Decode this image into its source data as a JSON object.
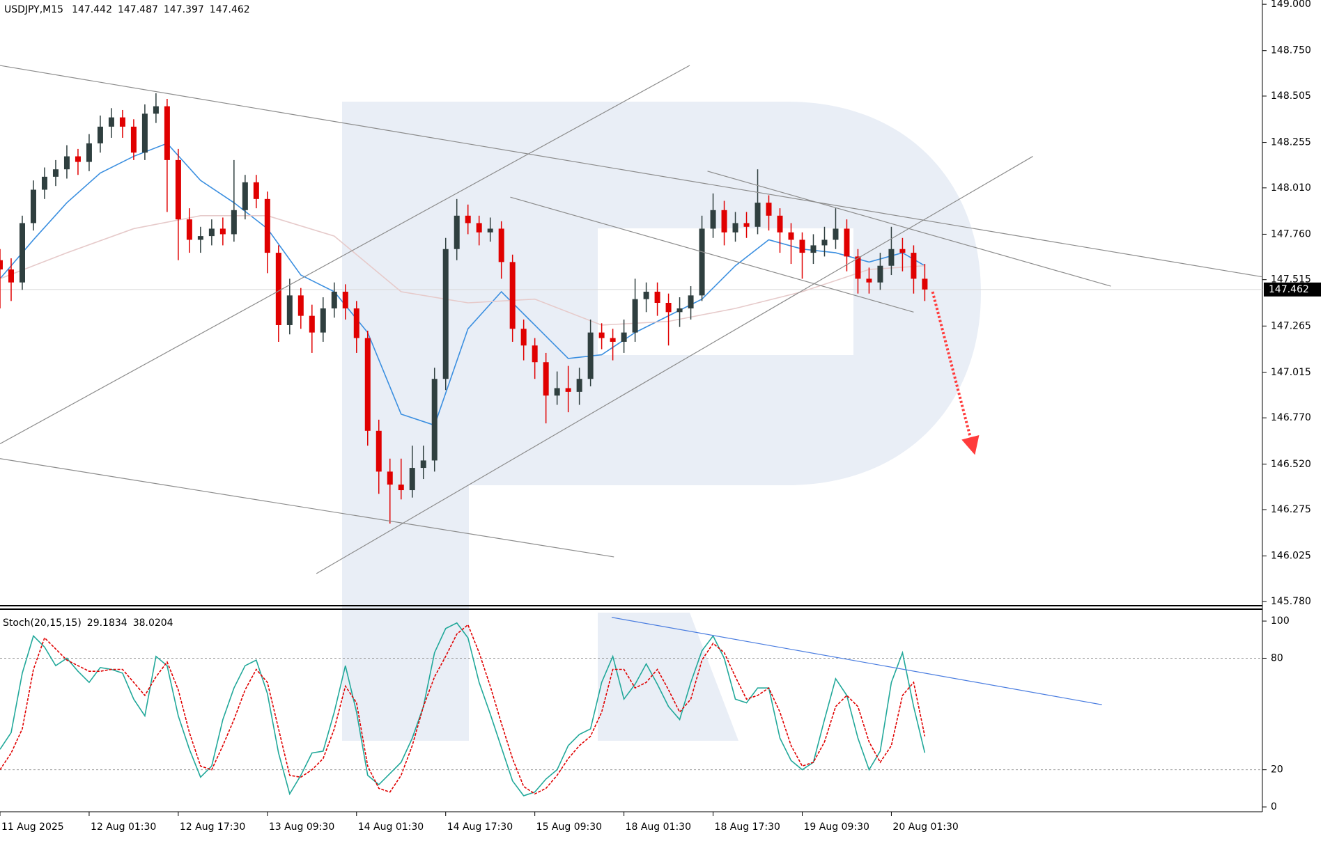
{
  "chart_data": [
    {
      "type": "candlestick",
      "title": "USDJPY,M15",
      "header_values": [
        147.442,
        147.487,
        147.397,
        147.462
      ],
      "up_color": "#2f3f3f",
      "down_color": "#e00000",
      "xlim": [
        0,
        113.3
      ],
      "ylim": [
        145.757,
        149.023
      ],
      "yticks": [
        {
          "value": 149.0,
          "label": "149.000"
        },
        {
          "value": 148.75,
          "label": "148.750"
        },
        {
          "value": 148.505,
          "label": "148.505"
        },
        {
          "value": 148.255,
          "label": "148.255"
        },
        {
          "value": 148.01,
          "label": "148.010"
        },
        {
          "value": 147.76,
          "label": "147.760"
        },
        {
          "value": 147.515,
          "label": "147.515"
        },
        {
          "value": 147.265,
          "label": "147.265"
        },
        {
          "value": 147.015,
          "label": "147.015"
        },
        {
          "value": 146.77,
          "label": "146.770"
        },
        {
          "value": 146.52,
          "label": "146.520"
        },
        {
          "value": 146.275,
          "label": "146.275"
        },
        {
          "value": 146.025,
          "label": "146.025"
        },
        {
          "value": 145.78,
          "label": "145.780"
        }
      ],
      "last_price": 147.462,
      "ohlc": [
        [
          147.62,
          147.68,
          147.36,
          147.57
        ],
        [
          147.57,
          147.63,
          147.4,
          147.5
        ],
        [
          147.5,
          147.86,
          147.46,
          147.82
        ],
        [
          147.82,
          148.05,
          147.78,
          148.0
        ],
        [
          148.0,
          148.12,
          147.95,
          148.07
        ],
        [
          148.07,
          148.16,
          148.02,
          148.11
        ],
        [
          148.11,
          148.24,
          148.06,
          148.18
        ],
        [
          148.18,
          148.22,
          148.08,
          148.15
        ],
        [
          148.15,
          148.3,
          148.1,
          148.25
        ],
        [
          148.25,
          148.4,
          148.2,
          148.34
        ],
        [
          148.34,
          148.44,
          148.28,
          148.39
        ],
        [
          148.39,
          148.43,
          148.28,
          148.34
        ],
        [
          148.34,
          148.38,
          148.16,
          148.2
        ],
        [
          148.2,
          148.46,
          148.16,
          148.41
        ],
        [
          148.41,
          148.52,
          148.36,
          148.45
        ],
        [
          148.45,
          148.49,
          147.88,
          148.16
        ],
        [
          148.16,
          148.22,
          147.62,
          147.84
        ],
        [
          147.84,
          147.9,
          147.66,
          147.73
        ],
        [
          147.73,
          147.8,
          147.66,
          147.75
        ],
        [
          147.75,
          147.84,
          147.7,
          147.79
        ],
        [
          147.79,
          147.85,
          147.7,
          147.76
        ],
        [
          147.76,
          148.16,
          147.72,
          147.89
        ],
        [
          147.89,
          148.08,
          147.84,
          148.04
        ],
        [
          148.04,
          148.08,
          147.9,
          147.95
        ],
        [
          147.95,
          147.99,
          147.55,
          147.66
        ],
        [
          147.66,
          147.7,
          147.18,
          147.27
        ],
        [
          147.27,
          147.52,
          147.22,
          147.43
        ],
        [
          147.43,
          147.47,
          147.25,
          147.32
        ],
        [
          147.32,
          147.38,
          147.12,
          147.23
        ],
        [
          147.23,
          147.42,
          147.18,
          147.36
        ],
        [
          147.36,
          147.5,
          147.31,
          147.45
        ],
        [
          147.45,
          147.49,
          147.3,
          147.36
        ],
        [
          147.36,
          147.4,
          147.12,
          147.2
        ],
        [
          147.2,
          147.24,
          146.62,
          146.7
        ],
        [
          146.7,
          146.76,
          146.36,
          146.48
        ],
        [
          146.48,
          146.55,
          146.2,
          146.41
        ],
        [
          146.41,
          146.55,
          146.33,
          146.38
        ],
        [
          146.38,
          146.62,
          146.34,
          146.5
        ],
        [
          146.5,
          146.62,
          146.44,
          146.54
        ],
        [
          146.54,
          147.04,
          146.48,
          146.98
        ],
        [
          146.98,
          147.74,
          146.92,
          147.68
        ],
        [
          147.68,
          147.95,
          147.62,
          147.86
        ],
        [
          147.86,
          147.92,
          147.76,
          147.82
        ],
        [
          147.82,
          147.86,
          147.7,
          147.77
        ],
        [
          147.77,
          147.85,
          147.72,
          147.79
        ],
        [
          147.79,
          147.83,
          147.52,
          147.61
        ],
        [
          147.61,
          147.65,
          147.18,
          147.25
        ],
        [
          147.25,
          147.3,
          147.08,
          147.16
        ],
        [
          147.16,
          147.2,
          146.98,
          147.07
        ],
        [
          147.07,
          147.12,
          146.74,
          146.89
        ],
        [
          146.89,
          147.02,
          146.84,
          146.93
        ],
        [
          146.93,
          147.05,
          146.8,
          146.91
        ],
        [
          146.91,
          147.04,
          146.84,
          146.98
        ],
        [
          146.98,
          147.3,
          146.94,
          147.23
        ],
        [
          147.23,
          147.28,
          147.14,
          147.2
        ],
        [
          147.2,
          147.25,
          147.08,
          147.18
        ],
        [
          147.18,
          147.3,
          147.12,
          147.23
        ],
        [
          147.23,
          147.52,
          147.18,
          147.41
        ],
        [
          147.41,
          147.5,
          147.34,
          147.45
        ],
        [
          147.45,
          147.5,
          147.32,
          147.39
        ],
        [
          147.39,
          147.44,
          147.16,
          147.34
        ],
        [
          147.34,
          147.42,
          147.26,
          147.36
        ],
        [
          147.36,
          147.48,
          147.3,
          147.43
        ],
        [
          147.43,
          147.86,
          147.4,
          147.79
        ],
        [
          147.79,
          147.98,
          147.74,
          147.89
        ],
        [
          147.89,
          147.94,
          147.7,
          147.77
        ],
        [
          147.77,
          147.88,
          147.72,
          147.82
        ],
        [
          147.82,
          147.88,
          147.74,
          147.8
        ],
        [
          147.8,
          148.11,
          147.76,
          147.93
        ],
        [
          147.93,
          147.97,
          147.78,
          147.86
        ],
        [
          147.86,
          147.9,
          147.66,
          147.77
        ],
        [
          147.77,
          147.82,
          147.6,
          147.73
        ],
        [
          147.73,
          147.77,
          147.52,
          147.66
        ],
        [
          147.66,
          147.76,
          147.6,
          147.7
        ],
        [
          147.7,
          147.8,
          147.64,
          147.73
        ],
        [
          147.73,
          147.9,
          147.68,
          147.79
        ],
        [
          147.79,
          147.84,
          147.56,
          147.64
        ],
        [
          147.64,
          147.68,
          147.44,
          147.52
        ],
        [
          147.52,
          147.58,
          147.44,
          147.5
        ],
        [
          147.5,
          147.66,
          147.46,
          147.59
        ],
        [
          147.59,
          147.8,
          147.54,
          147.68
        ],
        [
          147.68,
          147.74,
          147.56,
          147.66
        ],
        [
          147.66,
          147.7,
          147.44,
          147.52
        ],
        [
          147.52,
          147.6,
          147.4,
          147.462
        ]
      ],
      "overlays": [
        {
          "color": "#3b8fe0",
          "x": [
            0,
            3,
            6,
            9,
            12,
            15,
            18,
            21,
            24,
            27,
            30,
            33,
            36,
            39,
            42,
            45,
            48,
            51,
            54,
            57,
            60,
            63,
            66,
            69,
            72,
            75,
            78,
            81,
            83
          ],
          "values": [
            147.52,
            147.73,
            147.93,
            148.09,
            148.18,
            148.25,
            148.05,
            147.93,
            147.79,
            147.54,
            147.45,
            147.23,
            146.79,
            146.73,
            147.25,
            147.45,
            147.27,
            147.09,
            147.11,
            147.23,
            147.32,
            147.41,
            147.59,
            147.73,
            147.68,
            147.66,
            147.61,
            147.66,
            147.59
          ]
        },
        {
          "color": "#e6caca",
          "x": [
            0,
            6,
            12,
            18,
            24,
            30,
            36,
            42,
            48,
            54,
            60,
            66,
            72,
            78,
            83
          ],
          "values": [
            147.52,
            147.66,
            147.79,
            147.86,
            147.86,
            147.75,
            147.45,
            147.39,
            147.41,
            147.27,
            147.29,
            147.36,
            147.45,
            147.57,
            147.59
          ]
        }
      ],
      "trendline_color": "#8c8c8c",
      "trendlines": [
        {
          "x": [
            0,
            113.3
          ],
          "values": [
            148.67,
            147.53
          ]
        },
        {
          "x": [
            0,
            55.1
          ],
          "values": [
            146.55,
            146.02
          ]
        },
        {
          "x": [
            28.4,
            92.7
          ],
          "values": [
            145.93,
            148.18
          ]
        },
        {
          "x": [
            0,
            61.9
          ],
          "values": [
            146.63,
            148.67
          ]
        },
        {
          "x": [
            45.8,
            82.0
          ],
          "values": [
            147.96,
            147.34
          ]
        },
        {
          "x": [
            63.5,
            99.7
          ],
          "values": [
            148.1,
            147.48
          ]
        }
      ],
      "arrow": {
        "x": [
          83.7,
          87.5
        ],
        "values": [
          147.45,
          146.57
        ],
        "color": "#ff3b3b"
      }
    },
    {
      "type": "line",
      "title": "Stoch(20,15,15)",
      "header_values": [
        29.1834,
        38.0204
      ],
      "xlim": [
        0,
        113.3
      ],
      "ylim": [
        -2.6,
        106.4
      ],
      "yticks": [
        100,
        80,
        20,
        0
      ],
      "levels": [
        80,
        20
      ],
      "xticks": [
        {
          "value": 0,
          "label": "11 Aug 2025"
        },
        {
          "value": 8,
          "label": "12 Aug 01:30"
        },
        {
          "value": 16,
          "label": "12 Aug 17:30"
        },
        {
          "value": 24,
          "label": "13 Aug 09:30"
        },
        {
          "value": 32,
          "label": "14 Aug 01:30"
        },
        {
          "value": 40,
          "label": "14 Aug 17:30"
        },
        {
          "value": 48,
          "label": "15 Aug 09:30"
        },
        {
          "value": 56,
          "label": "18 Aug 01:30"
        },
        {
          "value": 64,
          "label": "18 Aug 17:30"
        },
        {
          "value": 72,
          "label": "19 Aug 09:30"
        },
        {
          "value": 80,
          "label": "20 Aug 01:30"
        }
      ],
      "series": [
        {
          "color": "#21a89a",
          "dashed": false,
          "values": [
            31,
            40,
            72,
            92,
            86,
            76,
            80,
            73,
            67,
            75,
            74,
            72,
            58,
            49,
            81,
            76,
            49,
            31,
            16,
            22,
            47,
            64,
            76,
            79,
            61,
            29,
            7,
            17,
            29,
            30,
            51,
            76,
            51,
            17,
            12,
            18,
            24,
            37,
            54,
            83,
            96,
            99,
            91,
            67,
            50,
            32,
            14,
            6,
            8,
            15,
            20,
            33,
            39,
            42,
            67,
            81,
            58,
            66,
            77,
            66,
            54,
            47,
            67,
            84,
            92,
            80,
            58,
            56,
            64,
            64,
            37,
            25,
            20,
            24,
            47,
            69,
            60,
            37,
            20,
            30,
            67,
            83,
            54,
            29.1834
          ]
        },
        {
          "color": "#e00000",
          "dashed": true,
          "values": [
            20,
            29,
            42,
            74,
            91,
            85,
            79,
            76,
            73,
            73,
            74,
            74,
            67,
            60,
            70,
            78,
            63,
            40,
            22,
            20,
            33,
            47,
            63,
            74,
            67,
            42,
            17,
            16,
            20,
            26,
            42,
            65,
            56,
            22,
            10,
            8,
            17,
            33,
            54,
            70,
            81,
            93,
            98,
            83,
            65,
            45,
            26,
            11,
            7,
            10,
            17,
            26,
            33,
            38,
            51,
            74,
            74,
            64,
            67,
            74,
            63,
            51,
            58,
            79,
            88,
            83,
            70,
            58,
            60,
            64,
            51,
            33,
            22,
            24,
            35,
            54,
            60,
            54,
            35,
            24,
            33,
            60,
            67,
            38.0204
          ]
        }
      ],
      "trendlines": [
        {
          "x": [
            54.9,
            98.9
          ],
          "values": [
            102,
            55
          ]
        }
      ],
      "trendline_color": "#4a7de0"
    }
  ]
}
